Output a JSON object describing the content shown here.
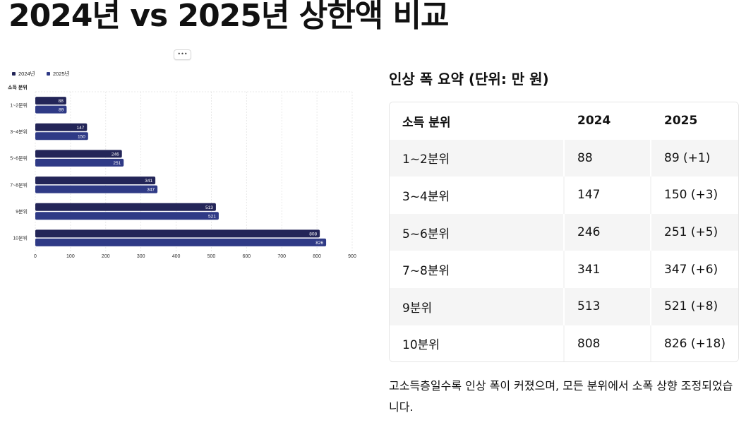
{
  "page": {
    "title": "2024년 vs 2025년 상한액 비교",
    "more_button": "•••"
  },
  "chart_data": {
    "type": "bar",
    "orientation": "horizontal",
    "title": "",
    "ylabel": "소득 분위",
    "xlabel": "",
    "categories": [
      "1~2분위",
      "3~4분위",
      "5~6분위",
      "7~8분위",
      "9분위",
      "10분위"
    ],
    "series": [
      {
        "name": "2024년",
        "values": [
          88,
          147,
          246,
          341,
          513,
          808
        ],
        "color": "#232558"
      },
      {
        "name": "2025년",
        "values": [
          89,
          150,
          251,
          347,
          521,
          826
        ],
        "color": "#2f3a86"
      }
    ],
    "xlim": [
      0,
      900
    ],
    "xticks": [
      0,
      100,
      200,
      300,
      400,
      500,
      600,
      700,
      800,
      900
    ],
    "grid": true,
    "legend": "top-left",
    "data_labels": true
  },
  "summary": {
    "heading": "인상 폭 요약 (단위: 만 원)",
    "columns": [
      "소득 분위",
      "2024",
      "2025"
    ],
    "rows": [
      [
        "1~2분위",
        "88",
        "89 (+1)"
      ],
      [
        "3~4분위",
        "147",
        "150 (+3)"
      ],
      [
        "5~6분위",
        "246",
        "251 (+5)"
      ],
      [
        "7~8분위",
        "341",
        "347 (+6)"
      ],
      [
        "9분위",
        "513",
        "521 (+8)"
      ],
      [
        "10분위",
        "808",
        "826 (+18)"
      ]
    ]
  },
  "note": "고소득층일수록 인상 폭이 커졌으며, 모든 분위에서 소폭 상향 조정되었습니다."
}
